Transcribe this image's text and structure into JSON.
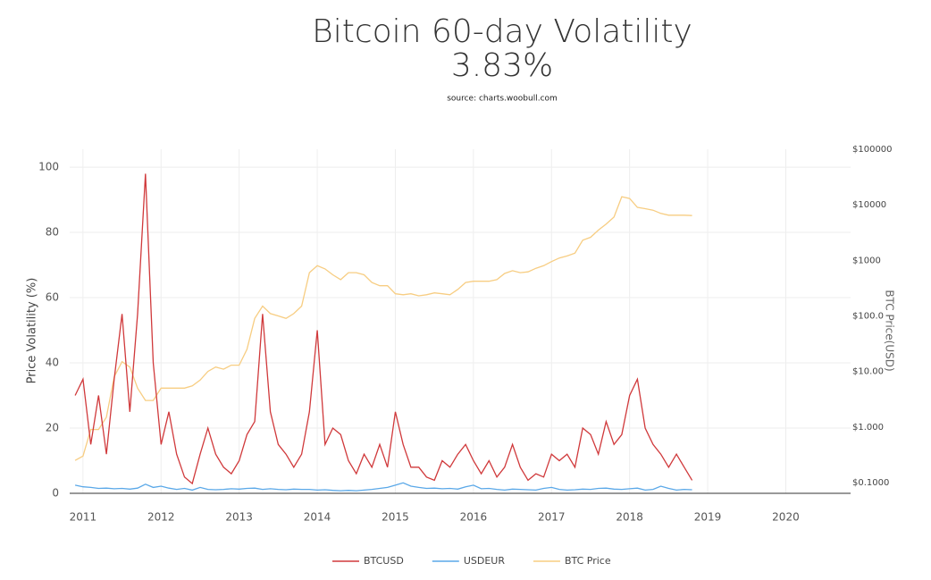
{
  "chart_data": {
    "type": "line",
    "title": "Bitcoin 60-day Volatility",
    "subtitle": "3.83%",
    "source": "source: charts.woobull.com",
    "y_label": "Price Volatility (%)",
    "y2_label": "BTC Price(USD)",
    "x": [
      2010.9,
      2011.0,
      2011.1,
      2011.2,
      2011.3,
      2011.4,
      2011.5,
      2011.6,
      2011.7,
      2011.8,
      2011.9,
      2012.0,
      2012.1,
      2012.2,
      2012.3,
      2012.4,
      2012.5,
      2012.6,
      2012.7,
      2012.8,
      2012.9,
      2013.0,
      2013.1,
      2013.2,
      2013.3,
      2013.4,
      2013.5,
      2013.6,
      2013.7,
      2013.8,
      2013.9,
      2014.0,
      2014.1,
      2014.2,
      2014.3,
      2014.4,
      2014.5,
      2014.6,
      2014.7,
      2014.8,
      2014.9,
      2015.0,
      2015.1,
      2015.2,
      2015.3,
      2015.4,
      2015.5,
      2015.6,
      2015.7,
      2015.8,
      2015.9,
      2016.0,
      2016.1,
      2016.2,
      2016.3,
      2016.4,
      2016.5,
      2016.6,
      2016.7,
      2016.8,
      2016.9,
      2017.0,
      2017.1,
      2017.2,
      2017.3,
      2017.4,
      2017.5,
      2017.6,
      2017.7,
      2017.8,
      2017.9,
      2018.0,
      2018.1,
      2018.2,
      2018.3,
      2018.4,
      2018.5,
      2018.6,
      2018.7,
      2018.8
    ],
    "series": [
      {
        "name": "BTCUSD",
        "color": "#d0393b",
        "values": [
          30,
          35,
          15,
          30,
          12,
          35,
          55,
          25,
          55,
          98,
          40,
          15,
          25,
          12,
          5,
          3,
          12,
          20,
          12,
          8,
          6,
          10,
          18,
          22,
          55,
          25,
          15,
          12,
          8,
          12,
          25,
          50,
          15,
          20,
          18,
          10,
          6,
          12,
          8,
          15,
          8,
          25,
          15,
          8,
          8,
          5,
          4,
          10,
          8,
          12,
          15,
          10,
          6,
          10,
          5,
          8,
          15,
          8,
          4,
          6,
          5,
          12,
          10,
          12,
          8,
          20,
          18,
          12,
          22,
          15,
          18,
          30,
          35,
          20,
          15,
          12,
          8,
          12,
          8,
          4
        ]
      },
      {
        "name": "USDEUR",
        "color": "#5aa8e8",
        "values": [
          2.5,
          2,
          1.8,
          1.5,
          1.6,
          1.4,
          1.5,
          1.3,
          1.6,
          2.8,
          1.8,
          2.2,
          1.6,
          1.2,
          1.5,
          1,
          1.8,
          1.2,
          1.1,
          1.2,
          1.4,
          1.3,
          1.5,
          1.6,
          1.2,
          1.4,
          1.2,
          1.1,
          1.3,
          1.2,
          1.2,
          1,
          1.1,
          0.9,
          0.8,
          0.9,
          0.8,
          1,
          1.2,
          1.5,
          1.8,
          2.5,
          3.2,
          2.2,
          1.8,
          1.5,
          1.6,
          1.4,
          1.5,
          1.3,
          2,
          2.5,
          1.4,
          1.5,
          1.2,
          1,
          1.3,
          1.2,
          1.1,
          1,
          1.5,
          1.8,
          1.2,
          1,
          1.1,
          1.3,
          1.2,
          1.5,
          1.6,
          1.3,
          1.2,
          1.4,
          1.6,
          1,
          1.2,
          2.2,
          1.5,
          1,
          1.2,
          1.1
        ]
      },
      {
        "name": "BTC Price",
        "color": "#f7cd82",
        "axis": "y2",
        "values": [
          0.25,
          0.3,
          0.9,
          0.9,
          1.5,
          8,
          15,
          12,
          5,
          3,
          3,
          5,
          5,
          5,
          5,
          5.5,
          7,
          10,
          12,
          11,
          13,
          13,
          25,
          90,
          150,
          110,
          100,
          90,
          110,
          150,
          600,
          800,
          700,
          550,
          450,
          600,
          600,
          550,
          400,
          350,
          350,
          250,
          240,
          250,
          230,
          240,
          260,
          250,
          240,
          300,
          400,
          420,
          420,
          420,
          450,
          580,
          650,
          600,
          620,
          720,
          800,
          950,
          1100,
          1200,
          1350,
          2300,
          2600,
          3500,
          4500,
          6000,
          14000,
          13000,
          9000,
          8500,
          8000,
          7000,
          6500,
          6500,
          6500,
          6400
        ]
      }
    ],
    "xlim": [
      2010.83,
      2020.83
    ],
    "xticks": [
      2011,
      2012,
      2013,
      2014,
      2015,
      2016,
      2017,
      2018,
      2019,
      2020
    ],
    "ylim": [
      0,
      105.5
    ],
    "yticks": [
      0,
      20,
      40,
      60,
      80,
      100
    ],
    "y2lim": [
      0.064,
      100000
    ],
    "y2_log": true,
    "y2ticks": [
      {
        "value": 0.1,
        "label": "$0.1000"
      },
      {
        "value": 1,
        "label": "$1.000"
      },
      {
        "value": 10,
        "label": "$10.00"
      },
      {
        "value": 100,
        "label": "$100.0"
      },
      {
        "value": 1000,
        "label": "$1000"
      },
      {
        "value": 10000,
        "label": "$10000"
      },
      {
        "value": 100000,
        "label": "$100000"
      }
    ],
    "grid": true,
    "legend": "bottom"
  }
}
